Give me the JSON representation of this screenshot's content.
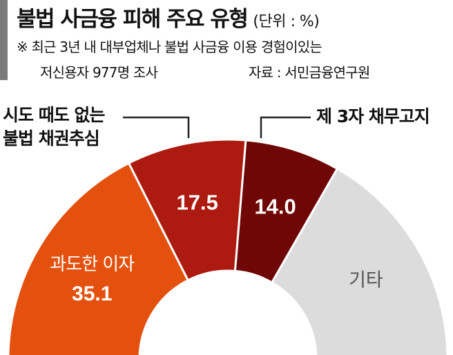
{
  "header": {
    "title": "불법 사금융 피해 주요 유형",
    "unit": "(단위 : %)",
    "note_line1": "※ 최근 3년 내 대부업체나 불법 사금융 이용 경험이있는",
    "note_line2": "저신용자 977명 조사",
    "source": "자료 : 서민금융연구원"
  },
  "callouts": {
    "left_line1": "시도 때도 없는",
    "left_line2": "불법 채권추심",
    "right": "제 3자 채무고지"
  },
  "chart_data": {
    "type": "pie",
    "shape": "semicircle-donut",
    "categories": [
      "과도한 이자",
      "시도 때도 없는 불법 채권추심",
      "제 3자 채무고지",
      "기타"
    ],
    "values": [
      35.1,
      17.5,
      14.0,
      33.4
    ],
    "value_labels": [
      "35.1",
      "17.5",
      "14.0",
      ""
    ],
    "slice_labels": [
      "과도한 이자",
      "",
      "",
      "기타"
    ],
    "colors": [
      "#e4510f",
      "#ad1a0f",
      "#6f0706",
      "#dcdcdc"
    ],
    "label_colors": [
      "#ffffff",
      "#ffffff",
      "#ffffff",
      "#555555"
    ]
  }
}
